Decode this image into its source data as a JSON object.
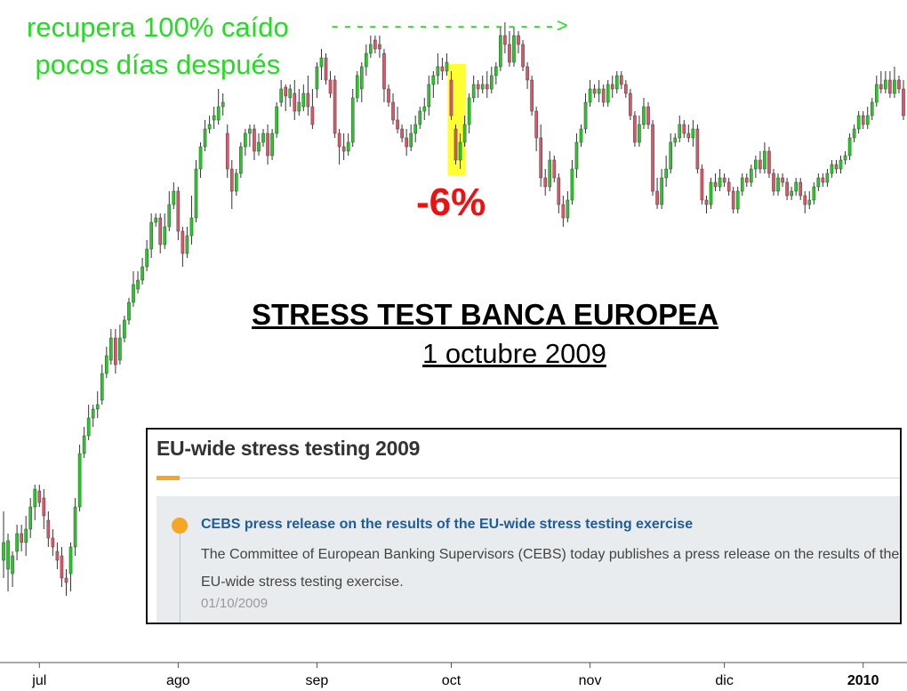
{
  "annotations": {
    "recovery_note_line1": "recupera 100% caído",
    "recovery_note_line2": "pocos días después",
    "arrow": "------------------>",
    "drop_label": "-6%",
    "title": "STRESS TEST BANCA EUROPEA",
    "subtitle": "1 octubre 2009"
  },
  "news_panel": {
    "title": "EU-wide stress testing 2009",
    "link": "CEBS press release on the results of the EU-wide stress testing exercise",
    "text": "The Committee of European Banking Supervisors (CEBS) today publishes a press release on the results of the EU-wide stress testing exercise.",
    "date": "01/10/2009"
  },
  "colors": {
    "up_candle": "#22cc22",
    "down_candle": "#dd5566",
    "highlight": "#ffff00",
    "accent": "#f5a623",
    "link": "#1f5c99"
  },
  "chart_data": {
    "type": "candlestick",
    "title": "",
    "x_ticks": [
      "jul",
      "ago",
      "sep",
      "oct",
      "nov",
      "dic",
      "2010"
    ],
    "x_tick_days": [
      0,
      31,
      62,
      92,
      123,
      153,
      184
    ],
    "x_range": [
      -8,
      193
    ],
    "y_range": [
      0,
      777
    ],
    "highlighted_period": {
      "start_day": 91.5,
      "end_day": 95
    },
    "candles": [
      [
        -8,
        630,
        610,
        650,
        575
      ],
      [
        -7,
        640,
        608,
        665,
        600
      ],
      [
        -6,
        645,
        625,
        660,
        620
      ],
      [
        -5,
        620,
        600,
        630,
        590
      ],
      [
        -4,
        600,
        610,
        620,
        590
      ],
      [
        -3,
        610,
        595,
        625,
        580
      ],
      [
        -2,
        595,
        570,
        605,
        560
      ],
      [
        -1,
        570,
        550,
        585,
        545
      ],
      [
        0,
        552,
        565,
        570,
        545
      ],
      [
        1,
        560,
        580,
        595,
        550
      ],
      [
        2,
        585,
        605,
        615,
        575
      ],
      [
        3,
        605,
        615,
        625,
        595
      ],
      [
        4,
        620,
        630,
        640,
        610
      ],
      [
        5,
        625,
        650,
        660,
        615
      ],
      [
        6,
        650,
        655,
        670,
        640
      ],
      [
        7,
        645,
        615,
        665,
        610
      ],
      [
        8,
        615,
        570,
        625,
        560
      ],
      [
        9,
        570,
        510,
        575,
        500
      ],
      [
        10,
        510,
        490,
        515,
        480
      ],
      [
        11,
        490,
        470,
        495,
        455
      ],
      [
        12,
        470,
        460,
        480,
        455
      ],
      [
        13,
        460,
        455,
        470,
        440
      ],
      [
        14,
        450,
        420,
        455,
        410
      ],
      [
        15,
        420,
        400,
        425,
        390
      ],
      [
        16,
        405,
        380,
        410,
        370
      ],
      [
        17,
        380,
        410,
        420,
        370
      ],
      [
        18,
        405,
        380,
        410,
        365
      ],
      [
        19,
        380,
        360,
        385,
        355
      ],
      [
        20,
        360,
        340,
        365,
        335
      ],
      [
        21,
        340,
        320,
        345,
        305
      ],
      [
        22,
        325,
        315,
        330,
        305
      ],
      [
        23,
        315,
        300,
        320,
        290
      ],
      [
        24,
        300,
        280,
        305,
        270
      ],
      [
        25,
        280,
        250,
        290,
        240
      ],
      [
        26,
        250,
        245,
        255,
        240
      ],
      [
        27,
        245,
        275,
        285,
        240
      ],
      [
        28,
        275,
        255,
        280,
        240
      ],
      [
        29,
        255,
        230,
        260,
        215
      ],
      [
        30,
        230,
        215,
        235,
        205
      ],
      [
        31,
        215,
        260,
        270,
        210
      ],
      [
        32,
        260,
        285,
        300,
        255
      ],
      [
        33,
        285,
        265,
        290,
        255
      ],
      [
        34,
        265,
        245,
        275,
        220
      ],
      [
        35,
        245,
        190,
        250,
        180
      ],
      [
        36,
        190,
        165,
        200,
        160
      ],
      [
        37,
        165,
        145,
        170,
        135
      ],
      [
        38,
        145,
        140,
        150,
        130
      ],
      [
        39,
        135,
        130,
        145,
        120
      ],
      [
        40,
        135,
        120,
        140,
        100
      ],
      [
        41,
        120,
        115,
        130,
        105
      ],
      [
        42,
        150,
        190,
        200,
        140
      ],
      [
        43,
        190,
        215,
        235,
        180
      ],
      [
        44,
        215,
        195,
        220,
        190
      ],
      [
        45,
        195,
        165,
        200,
        160
      ],
      [
        46,
        165,
        150,
        175,
        145
      ],
      [
        47,
        150,
        145,
        165,
        140
      ],
      [
        48,
        145,
        170,
        180,
        140
      ],
      [
        49,
        170,
        160,
        175,
        150
      ],
      [
        50,
        160,
        150,
        165,
        145
      ],
      [
        51,
        150,
        175,
        185,
        140
      ],
      [
        52,
        175,
        150,
        180,
        145
      ],
      [
        53,
        150,
        120,
        155,
        115
      ],
      [
        54,
        115,
        100,
        120,
        90
      ],
      [
        55,
        98,
        108,
        125,
        95
      ],
      [
        56,
        110,
        100,
        120,
        95
      ],
      [
        57,
        105,
        125,
        135,
        90
      ],
      [
        58,
        125,
        115,
        130,
        100
      ],
      [
        59,
        120,
        105,
        125,
        95
      ],
      [
        60,
        105,
        120,
        130,
        85
      ],
      [
        61,
        120,
        140,
        145,
        100
      ],
      [
        62,
        100,
        75,
        110,
        70
      ],
      [
        63,
        75,
        65,
        90,
        55
      ],
      [
        64,
        65,
        90,
        95,
        60
      ],
      [
        65,
        90,
        105,
        110,
        80
      ],
      [
        66,
        90,
        150,
        155,
        85
      ],
      [
        67,
        150,
        165,
        185,
        145
      ],
      [
        68,
        165,
        170,
        180,
        150
      ],
      [
        69,
        170,
        160,
        175,
        150
      ],
      [
        70,
        160,
        110,
        165,
        100
      ],
      [
        71,
        110,
        85,
        115,
        80
      ],
      [
        72,
        100,
        75,
        115,
        70
      ],
      [
        73,
        75,
        60,
        85,
        50
      ],
      [
        74,
        60,
        50,
        65,
        40
      ],
      [
        75,
        45,
        55,
        60,
        40
      ],
      [
        76,
        50,
        55,
        65,
        40
      ],
      [
        77,
        60,
        100,
        115,
        55
      ],
      [
        78,
        100,
        115,
        120,
        95
      ],
      [
        79,
        115,
        135,
        140,
        105
      ],
      [
        80,
        135,
        145,
        150,
        120
      ],
      [
        81,
        145,
        155,
        160,
        140
      ],
      [
        82,
        155,
        165,
        175,
        145
      ],
      [
        83,
        165,
        150,
        170,
        140
      ],
      [
        84,
        150,
        140,
        160,
        130
      ],
      [
        85,
        140,
        125,
        145,
        120
      ],
      [
        86,
        125,
        120,
        135,
        110
      ],
      [
        87,
        120,
        95,
        130,
        85
      ],
      [
        88,
        95,
        85,
        110,
        80
      ],
      [
        89,
        85,
        75,
        95,
        60
      ],
      [
        90,
        75,
        80,
        90,
        65
      ],
      [
        91,
        80,
        70,
        85,
        60
      ],
      [
        92,
        90,
        130,
        135,
        80
      ],
      [
        93,
        145,
        180,
        185,
        140
      ],
      [
        94,
        180,
        160,
        190,
        150
      ],
      [
        95,
        160,
        140,
        165,
        130
      ],
      [
        96,
        140,
        110,
        150,
        105
      ],
      [
        97,
        110,
        95,
        115,
        85
      ],
      [
        98,
        95,
        100,
        110,
        90
      ],
      [
        99,
        100,
        95,
        105,
        85
      ],
      [
        100,
        95,
        100,
        110,
        80
      ],
      [
        101,
        100,
        85,
        105,
        75
      ],
      [
        102,
        85,
        75,
        95,
        70
      ],
      [
        103,
        75,
        40,
        80,
        30
      ],
      [
        104,
        40,
        50,
        60,
        25
      ],
      [
        105,
        50,
        70,
        75,
        35
      ],
      [
        106,
        70,
        40,
        75,
        30
      ],
      [
        107,
        40,
        50,
        60,
        35
      ],
      [
        108,
        50,
        75,
        80,
        45
      ],
      [
        109,
        75,
        90,
        100,
        70
      ],
      [
        110,
        90,
        125,
        130,
        85
      ],
      [
        111,
        125,
        155,
        170,
        120
      ],
      [
        112,
        155,
        200,
        210,
        140
      ],
      [
        113,
        200,
        210,
        220,
        190
      ],
      [
        114,
        210,
        180,
        215,
        170
      ],
      [
        115,
        180,
        200,
        205,
        175
      ],
      [
        116,
        200,
        230,
        240,
        195
      ],
      [
        117,
        230,
        245,
        255,
        220
      ],
      [
        118,
        245,
        225,
        250,
        215
      ],
      [
        119,
        225,
        190,
        230,
        180
      ],
      [
        120,
        190,
        160,
        200,
        150
      ],
      [
        121,
        160,
        145,
        165,
        140
      ],
      [
        122,
        145,
        115,
        150,
        105
      ],
      [
        123,
        115,
        100,
        120,
        90
      ],
      [
        124,
        100,
        105,
        110,
        95
      ],
      [
        125,
        105,
        100,
        115,
        90
      ],
      [
        126,
        100,
        115,
        120,
        95
      ],
      [
        127,
        115,
        95,
        120,
        90
      ],
      [
        128,
        95,
        100,
        110,
        85
      ],
      [
        129,
        100,
        85,
        105,
        80
      ],
      [
        130,
        85,
        95,
        100,
        80
      ],
      [
        131,
        95,
        105,
        110,
        90
      ],
      [
        132,
        105,
        130,
        135,
        100
      ],
      [
        133,
        130,
        160,
        165,
        125
      ],
      [
        134,
        160,
        140,
        165,
        130
      ],
      [
        135,
        140,
        120,
        145,
        110
      ],
      [
        136,
        120,
        140,
        145,
        115
      ],
      [
        137,
        140,
        215,
        220,
        135
      ],
      [
        138,
        215,
        230,
        235,
        200
      ],
      [
        139,
        230,
        200,
        235,
        190
      ],
      [
        140,
        200,
        190,
        210,
        175
      ],
      [
        141,
        190,
        160,
        195,
        150
      ],
      [
        142,
        160,
        155,
        165,
        150
      ],
      [
        143,
        155,
        140,
        160,
        130
      ],
      [
        144,
        140,
        150,
        155,
        135
      ],
      [
        145,
        150,
        155,
        160,
        140
      ],
      [
        146,
        155,
        145,
        165,
        135
      ],
      [
        147,
        145,
        190,
        195,
        140
      ],
      [
        148,
        190,
        225,
        230,
        185
      ],
      [
        149,
        225,
        230,
        240,
        220
      ],
      [
        150,
        230,
        205,
        235,
        200
      ],
      [
        151,
        205,
        210,
        215,
        195
      ],
      [
        152,
        210,
        200,
        215,
        190
      ],
      [
        153,
        200,
        205,
        210,
        195
      ],
      [
        154,
        205,
        215,
        220,
        200
      ],
      [
        155,
        215,
        235,
        240,
        210
      ],
      [
        156,
        235,
        215,
        240,
        210
      ],
      [
        157,
        215,
        200,
        220,
        195
      ],
      [
        158,
        200,
        205,
        210,
        195
      ],
      [
        159,
        205,
        190,
        210,
        185
      ],
      [
        160,
        190,
        180,
        200,
        175
      ],
      [
        161,
        180,
        190,
        195,
        170
      ],
      [
        162,
        190,
        170,
        195,
        160
      ],
      [
        163,
        170,
        195,
        200,
        165
      ],
      [
        164,
        195,
        215,
        220,
        190
      ],
      [
        165,
        215,
        200,
        220,
        195
      ],
      [
        166,
        200,
        205,
        210,
        195
      ],
      [
        167,
        205,
        220,
        225,
        200
      ],
      [
        168,
        220,
        215,
        225,
        210
      ],
      [
        169,
        215,
        205,
        220,
        200
      ],
      [
        170,
        205,
        220,
        225,
        200
      ],
      [
        171,
        220,
        230,
        240,
        215
      ],
      [
        172,
        230,
        225,
        235,
        215
      ],
      [
        173,
        225,
        210,
        230,
        205
      ],
      [
        174,
        210,
        200,
        215,
        195
      ],
      [
        175,
        200,
        205,
        210,
        195
      ],
      [
        176,
        205,
        195,
        210,
        190
      ],
      [
        177,
        195,
        185,
        200,
        180
      ],
      [
        178,
        185,
        190,
        195,
        180
      ],
      [
        179,
        190,
        180,
        195,
        175
      ],
      [
        180,
        180,
        175,
        185,
        170
      ],
      [
        181,
        175,
        155,
        180,
        150
      ],
      [
        182,
        155,
        145,
        160,
        140
      ],
      [
        183,
        145,
        130,
        150,
        125
      ],
      [
        184,
        130,
        140,
        145,
        125
      ],
      [
        185,
        140,
        130,
        145,
        120
      ],
      [
        186,
        130,
        115,
        135,
        110
      ],
      [
        187,
        115,
        95,
        120,
        85
      ],
      [
        188,
        95,
        100,
        105,
        80
      ],
      [
        189,
        100,
        90,
        105,
        80
      ],
      [
        190,
        90,
        105,
        110,
        80
      ],
      [
        191,
        105,
        90,
        110,
        75
      ],
      [
        192,
        90,
        100,
        105,
        85
      ],
      [
        193,
        100,
        130,
        135,
        90
      ]
    ]
  }
}
